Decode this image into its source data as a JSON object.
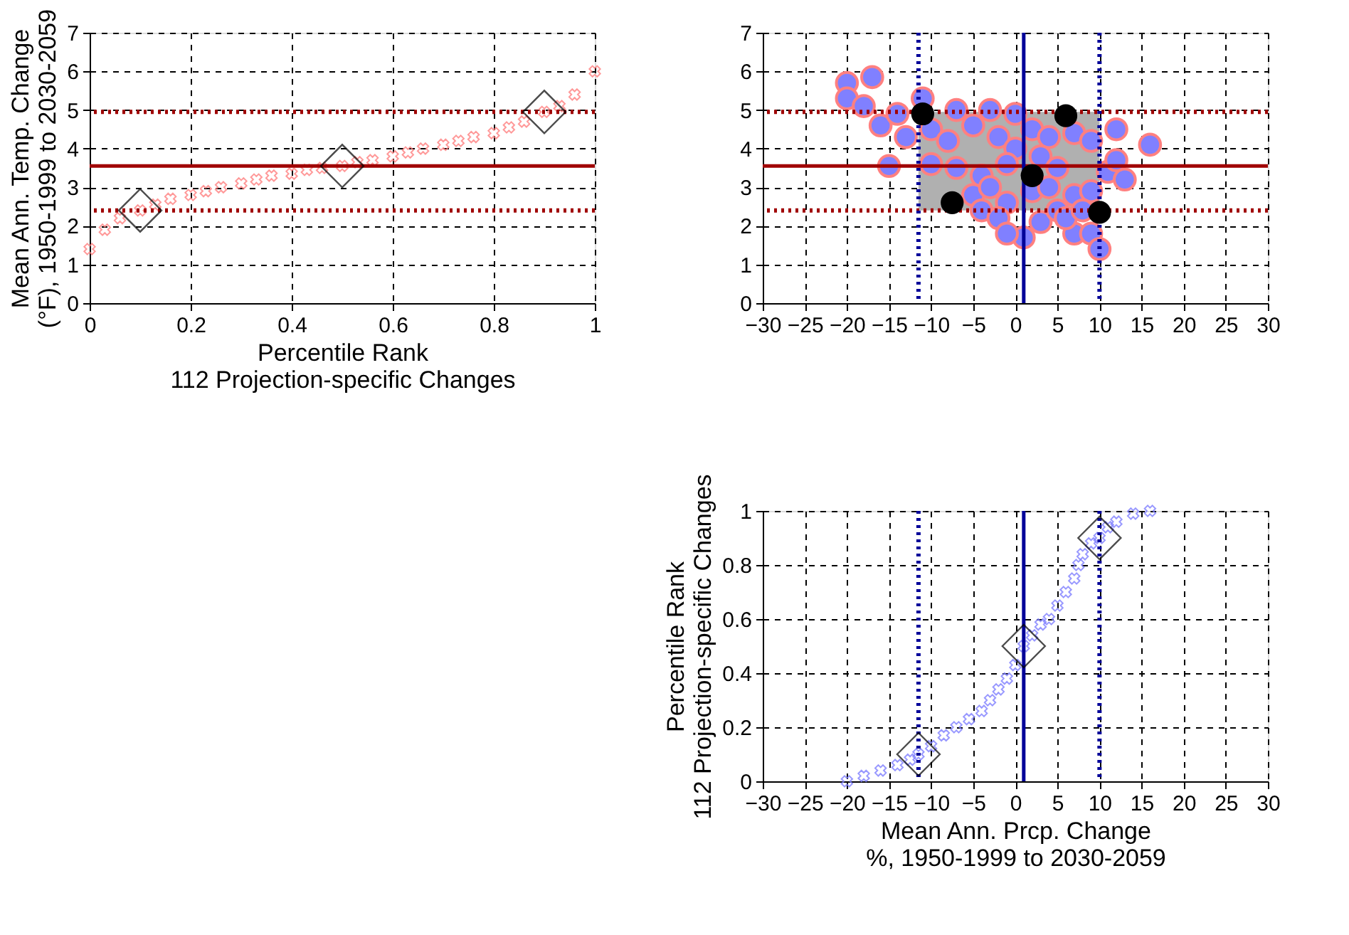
{
  "chart_data": [
    {
      "type": "scatter",
      "xlabel": "Percentile Rank\n112 Projection-specific Changes",
      "ylabel": "Mean Ann. Temp. Change\n(°F), 1950-1999 to 2030-2059",
      "xlim": [
        0,
        1
      ],
      "xticks": [
        0,
        0.2,
        0.4,
        0.6,
        0.8,
        1
      ],
      "ylim": [
        0,
        7
      ],
      "yticks": [
        0,
        1,
        2,
        3,
        4,
        5,
        6,
        7
      ],
      "grid": true,
      "series": [
        {
          "color": "#ff8080",
          "marker": "cross",
          "x": [
            0,
            0.03,
            0.06,
            0.1,
            0.13,
            0.16,
            0.2,
            0.23,
            0.26,
            0.3,
            0.33,
            0.36,
            0.4,
            0.43,
            0.46,
            0.5,
            0.53,
            0.56,
            0.6,
            0.63,
            0.66,
            0.7,
            0.73,
            0.76,
            0.8,
            0.83,
            0.86,
            0.9,
            0.93,
            0.96,
            1
          ],
          "values": [
            1.4,
            1.9,
            2.2,
            2.4,
            2.55,
            2.7,
            2.8,
            2.9,
            3.0,
            3.1,
            3.2,
            3.3,
            3.35,
            3.45,
            3.5,
            3.55,
            3.65,
            3.7,
            3.8,
            3.9,
            4.0,
            4.1,
            4.2,
            4.3,
            4.4,
            4.55,
            4.7,
            4.95,
            5.1,
            5.4,
            6.0
          ]
        },
        {
          "color": "#000000",
          "marker": "diamond",
          "x": [
            0.1,
            0.5,
            0.9
          ],
          "values": [
            2.4,
            3.55,
            4.95
          ]
        }
      ],
      "ref_lines": [
        {
          "axis": "y",
          "value": 3.55,
          "color": "#a00000",
          "line_style": "solid"
        },
        {
          "axis": "y",
          "value": 2.4,
          "color": "#a00000",
          "line_style": "dotted"
        },
        {
          "axis": "y",
          "value": 4.95,
          "color": "#a00000",
          "line_style": "dotted"
        }
      ]
    },
    {
      "type": "scatter",
      "xlim": [
        -30,
        30
      ],
      "xticks": [
        -30,
        -25,
        -20,
        -15,
        -10,
        -5,
        0,
        5,
        10,
        15,
        20,
        25,
        30
      ],
      "ylim": [
        0,
        7
      ],
      "yticks": [
        0,
        1,
        2,
        3,
        4,
        5,
        6,
        7
      ],
      "grid": true,
      "series": [
        {
          "color": "#8080ff",
          "marker": "circle",
          "x": [
            -20,
            -17,
            -20,
            -18,
            -16,
            -14,
            -15,
            -11,
            -7,
            -3,
            0,
            -13,
            -10,
            -8,
            -5,
            -2,
            0,
            2,
            4,
            7,
            9,
            12,
            16,
            -10,
            -7,
            -4,
            -1,
            3,
            5,
            8,
            11,
            13,
            12,
            -5,
            -3,
            -1,
            2,
            4,
            7,
            9,
            -4,
            -2,
            0,
            1,
            3,
            5,
            7,
            9,
            10,
            -1,
            6,
            8
          ],
          "values": [
            5.7,
            5.85,
            5.3,
            5.1,
            4.6,
            4.9,
            3.55,
            5.3,
            5.0,
            5.0,
            4.9,
            4.3,
            4.5,
            4.2,
            4.6,
            4.3,
            4.0,
            4.5,
            4.3,
            4.4,
            4.2,
            4.5,
            4.1,
            3.6,
            3.5,
            3.3,
            3.6,
            3.8,
            3.5,
            null,
            3.4,
            3.2,
            3.7,
            2.8,
            3.0,
            2.6,
            2.9,
            3.0,
            2.8,
            2.9,
            2.4,
            2.2,
            null,
            1.7,
            2.1,
            2.4,
            1.8,
            1.8,
            1.4,
            1.8,
            2.2,
            2.4
          ]
        },
        {
          "color": "#000000",
          "marker": "circle",
          "x": [
            -11,
            -7.5,
            2,
            6,
            10
          ],
          "values": [
            4.9,
            2.6,
            3.3,
            4.85,
            2.35
          ]
        }
      ],
      "bands": [
        {
          "axis": "x",
          "from": -11.5,
          "to": 10,
          "color": "#b0b0b0"
        }
      ],
      "ref_lines": [
        {
          "axis": "y",
          "value": 3.55,
          "color": "#a00000",
          "line_style": "solid"
        },
        {
          "axis": "y",
          "value": 2.4,
          "color": "#a00000",
          "line_style": "dotted"
        },
        {
          "axis": "y",
          "value": 4.95,
          "color": "#a00000",
          "line_style": "dotted"
        },
        {
          "axis": "x",
          "value": 1,
          "color": "#000099",
          "line_style": "solid"
        },
        {
          "axis": "x",
          "value": -11.5,
          "color": "#000099",
          "line_style": "dotted"
        },
        {
          "axis": "x",
          "value": 10,
          "color": "#000099",
          "line_style": "dotted"
        }
      ]
    },
    {
      "type": "scatter",
      "xlabel": "Mean Ann. Prcp. Change\n%, 1950-1999 to 2030-2059",
      "ylabel": "Percentile Rank\n112 Projection-specific Changes",
      "xlim": [
        -30,
        30
      ],
      "xticks": [
        -30,
        -25,
        -20,
        -15,
        -10,
        -5,
        0,
        5,
        10,
        15,
        20,
        25,
        30
      ],
      "ylim": [
        0,
        1
      ],
      "yticks": [
        0,
        0.2,
        0.4,
        0.6,
        0.8,
        1
      ],
      "grid": true,
      "series": [
        {
          "color": "#8080ff",
          "marker": "cross",
          "x": [
            -20,
            -18,
            -16,
            -14,
            -12.5,
            -11.5,
            -10,
            -8.5,
            -7,
            -5.5,
            -4,
            -3,
            -2,
            -1,
            0,
            1,
            2,
            3,
            4,
            5,
            6,
            7,
            7.5,
            8,
            9,
            10,
            11,
            12,
            14,
            16
          ],
          "values": [
            0,
            0.02,
            0.04,
            0.06,
            0.08,
            0.1,
            0.13,
            0.17,
            0.2,
            0.23,
            0.26,
            0.3,
            0.34,
            0.38,
            0.43,
            0.5,
            0.54,
            0.58,
            0.6,
            0.65,
            0.7,
            0.75,
            0.8,
            0.84,
            0.88,
            0.9,
            0.94,
            0.96,
            0.99,
            1
          ]
        },
        {
          "color": "#000000",
          "marker": "diamond",
          "x": [
            -11.5,
            1,
            10
          ],
          "values": [
            0.1,
            0.5,
            0.9
          ]
        }
      ],
      "ref_lines": [
        {
          "axis": "x",
          "value": 1,
          "color": "#000099",
          "line_style": "solid"
        },
        {
          "axis": "x",
          "value": -11.5,
          "color": "#000099",
          "line_style": "dotted"
        },
        {
          "axis": "x",
          "value": 10,
          "color": "#000099",
          "line_style": "dotted"
        }
      ]
    }
  ]
}
